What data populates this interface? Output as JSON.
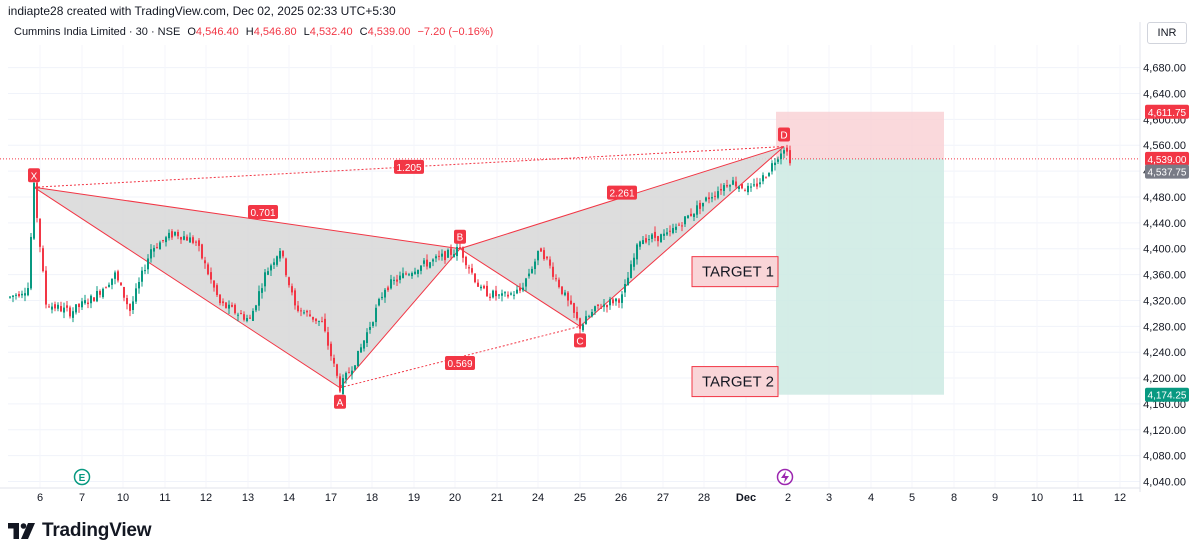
{
  "attribution": "indiapte28 created with TradingView.com, Dec 02, 2025 02:33 UTC+5:30",
  "legend": {
    "symbol": "Cummins India Limited · 30 · NSE",
    "open_label": "O",
    "open": "4,546.40",
    "high_label": "H",
    "high": "4,546.80",
    "low_label": "L",
    "low": "4,532.40",
    "close_label": "C",
    "close": "4,539.00",
    "change": "−7.20 (−0.16%)"
  },
  "currency": "INR",
  "brand": "TradingView",
  "icons": [
    "earnings-icon",
    "dividend-lightning-icon",
    "tradingview-logo-icon"
  ],
  "colors": {
    "up": "#089981",
    "down": "#f23645",
    "pattern_fill": "#d9d9d9",
    "pattern_line": "#f23645",
    "stop_zone": "#f9d0d3",
    "target_zone": "#cdeae3"
  },
  "chart_data": {
    "type": "candlestick",
    "y_range": [
      4030,
      4715
    ],
    "y_ticks": [
      4040,
      4080,
      4120,
      4160,
      4200,
      4240,
      4280,
      4320,
      4360,
      4400,
      4440,
      4480,
      4520,
      4560,
      4600,
      4640,
      4680
    ],
    "x_tick_labels": [
      "6",
      "7",
      "10",
      "11",
      "12",
      "13",
      "14",
      "17",
      "18",
      "19",
      "20",
      "21",
      "24",
      "25",
      "26",
      "27",
      "28",
      "Dec",
      "2",
      "3",
      "4",
      "5",
      "8",
      "9",
      "10",
      "11",
      "12"
    ],
    "price_tags": [
      {
        "label": "4,611.75",
        "value": 4611.75,
        "color": "#f23645"
      },
      {
        "label": "4,539.00",
        "value": 4539.0,
        "color": "#f23645"
      },
      {
        "label": "4,537.75",
        "value": 4537.75,
        "color": "#787b86"
      },
      {
        "label": "4,174.25",
        "value": 4174.25,
        "color": "#089981"
      }
    ],
    "current_price": 4539.0,
    "harmonic_pattern": {
      "points": [
        {
          "label": "X",
          "session": 8,
          "price": 4495
        },
        {
          "label": "A",
          "session": 110,
          "price": 4185
        },
        {
          "label": "B",
          "session": 150,
          "price": 4400
        },
        {
          "label": "C",
          "session": 190,
          "price": 4280
        },
        {
          "label": "D",
          "session": 258,
          "price": 4558
        }
      ],
      "ratios": [
        {
          "label": "0.701"
        },
        {
          "label": "1.205"
        },
        {
          "label": "0.569"
        },
        {
          "label": "2.261"
        }
      ]
    },
    "position": {
      "entry": 4539.0,
      "stop": 4611.75,
      "target": 4174.25
    },
    "annotations": [
      {
        "text": "TARGET 1",
        "price": 4363
      },
      {
        "text": "TARGET 2",
        "price": 4193
      }
    ],
    "price_path": [
      [
        0,
        4325
      ],
      [
        6,
        4340
      ],
      [
        8,
        4495
      ],
      [
        12,
        4315
      ],
      [
        20,
        4302
      ],
      [
        28,
        4325
      ],
      [
        35,
        4360
      ],
      [
        40,
        4305
      ],
      [
        47,
        4400
      ],
      [
        55,
        4425
      ],
      [
        62,
        4410
      ],
      [
        70,
        4315
      ],
      [
        80,
        4290
      ],
      [
        85,
        4360
      ],
      [
        90,
        4400
      ],
      [
        95,
        4310
      ],
      [
        104,
        4285
      ],
      [
        110,
        4185
      ],
      [
        116,
        4235
      ],
      [
        125,
        4340
      ],
      [
        135,
        4370
      ],
      [
        143,
        4385
      ],
      [
        150,
        4400
      ],
      [
        157,
        4335
      ],
      [
        164,
        4325
      ],
      [
        170,
        4335
      ],
      [
        177,
        4400
      ],
      [
        184,
        4335
      ],
      [
        190,
        4280
      ],
      [
        196,
        4310
      ],
      [
        204,
        4325
      ],
      [
        210,
        4415
      ],
      [
        219,
        4420
      ],
      [
        226,
        4450
      ],
      [
        233,
        4480
      ],
      [
        240,
        4505
      ],
      [
        247,
        4490
      ],
      [
        252,
        4515
      ],
      [
        256,
        4545
      ],
      [
        258,
        4558
      ],
      [
        260,
        4539
      ]
    ]
  }
}
